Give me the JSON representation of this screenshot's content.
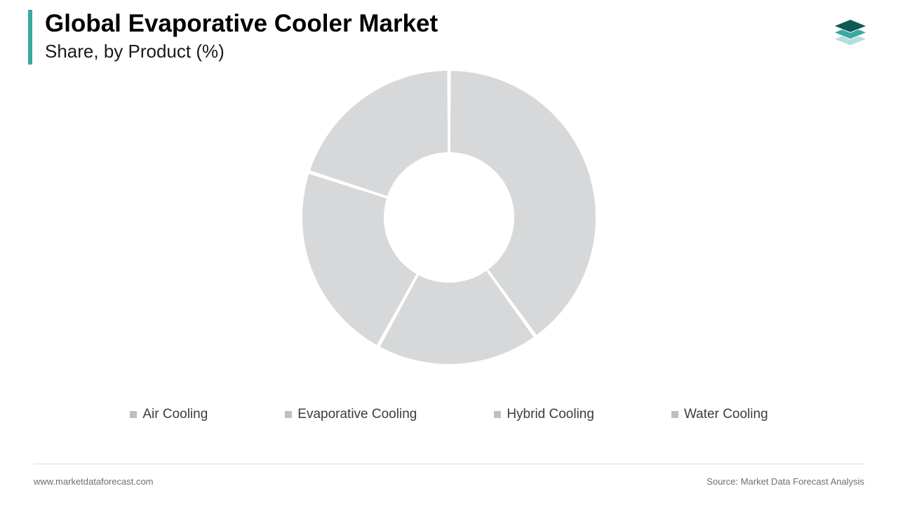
{
  "header": {
    "title": "Global Evaporative Cooler Market",
    "subtitle": "Share, by Product (%)",
    "accent_color": "#3aa8a0",
    "title_color": "#000000",
    "title_fontsize": 35,
    "subtitle_fontsize": 26,
    "subtitle_color": "#1a1a1a"
  },
  "logo": {
    "colors": {
      "top": "#0f5a53",
      "mid": "#3aa8a0",
      "bot": "#b6ded9"
    },
    "width": 56
  },
  "chart": {
    "type": "donut",
    "outer_radius": 210,
    "inner_radius": 92,
    "gap_deg": 0.9,
    "background_color": "#ffffff",
    "slice_stroke": "#ffffff",
    "slice_stroke_width": 2,
    "slices": [
      {
        "label": "Air Cooling",
        "value": 40,
        "color": "#d7d8d9"
      },
      {
        "label": "Evaporative Cooling",
        "value": 18,
        "color": "#d7d8d9"
      },
      {
        "label": "Hybrid Cooling",
        "value": 22,
        "color": "#d7d8d9"
      },
      {
        "label": "Water Cooling",
        "value": 20,
        "color": "#d7d8d9"
      }
    ]
  },
  "legend": {
    "swatch_color": "#bdbfc1",
    "text_color": "#3c3c3c",
    "fontsize": 19,
    "items": [
      "Air Cooling",
      "Evaporative Cooling",
      "Hybrid Cooling",
      "Water Cooling"
    ]
  },
  "footer": {
    "rule_color": "#d9d9d9",
    "left": "www.marketdataforecast.com",
    "right": "Source: Market Data Forecast Analysis",
    "text_color": "#6f6f6f"
  }
}
